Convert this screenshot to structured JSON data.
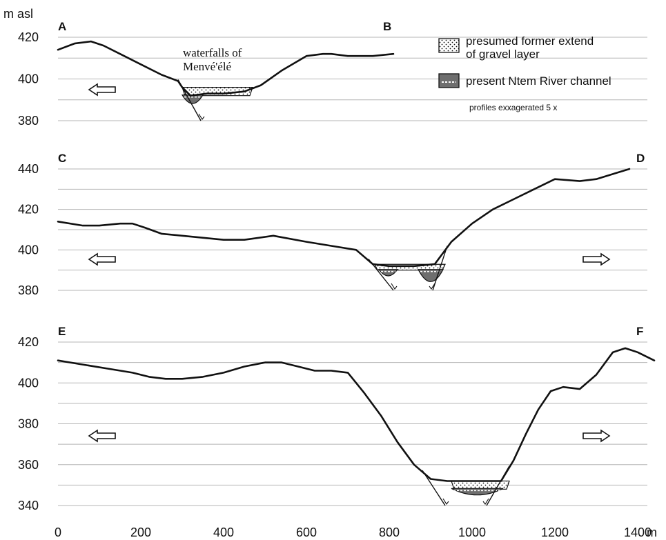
{
  "chart_data": [
    {
      "type": "line",
      "title": "",
      "ylabel": "m asl",
      "xlabel": "",
      "ylim": [
        380,
        420
      ],
      "yticks": [
        "380",
        "400",
        "420"
      ],
      "corner_left": "A",
      "corner_right": "B",
      "annotation_lines": [
        "waterfalls of",
        "Menvé'élé"
      ],
      "arrows": [
        "left"
      ],
      "profile": {
        "x": [
          0,
          40,
          80,
          110,
          150,
          200,
          250,
          290,
          300,
          320,
          360,
          400,
          450,
          490,
          540,
          600,
          640,
          660,
          700,
          760,
          810
        ],
        "y": [
          414,
          417,
          418,
          416,
          412,
          407,
          402,
          399,
          396,
          392,
          393,
          393,
          394,
          397,
          404,
          411,
          412,
          412,
          411,
          411,
          412
        ]
      },
      "gravel": [
        {
          "x_start": 300,
          "x_end": 470,
          "bottom": 392
        }
      ],
      "channel": [
        {
          "x_start": 300,
          "x_end": 350,
          "bottom": 388
        }
      ],
      "faults": [
        [
          290,
          345
        ]
      ]
    },
    {
      "type": "line",
      "title": "",
      "ylim": [
        380,
        440
      ],
      "yticks": [
        "380",
        "400",
        "420",
        "440"
      ],
      "corner_left": "C",
      "corner_right": "D",
      "arrows": [
        "left",
        "right"
      ],
      "profile": {
        "x": [
          0,
          60,
          100,
          150,
          180,
          210,
          250,
          300,
          400,
          450,
          520,
          600,
          660,
          720,
          760,
          800,
          860,
          910,
          950,
          1000,
          1050,
          1100,
          1150,
          1200,
          1260,
          1300,
          1380
        ],
        "y": [
          414,
          412,
          412,
          413,
          413,
          411,
          408,
          407,
          405,
          405,
          407,
          404,
          402,
          400,
          393,
          392,
          392,
          393,
          404,
          413,
          420,
          425,
          430,
          435,
          434,
          435,
          440
        ]
      },
      "gravel": [
        {
          "x_start": 765,
          "x_end": 935,
          "bottom": 390
        }
      ],
      "channel": [
        {
          "x_start": 775,
          "x_end": 820,
          "bottom": 387
        },
        {
          "x_start": 870,
          "x_end": 930,
          "bottom": 384
        }
      ],
      "faults": [
        [
          750,
          810
        ],
        [
          940,
          905
        ]
      ]
    },
    {
      "type": "line",
      "title": "",
      "xlabel": "m",
      "ylim": [
        340,
        420
      ],
      "yticks": [
        "340",
        "360",
        "380",
        "400",
        "420"
      ],
      "xlim": [
        0,
        1400
      ],
      "xticks": [
        "0",
        "200",
        "400",
        "600",
        "800",
        "1000",
        "1200",
        "1400"
      ],
      "corner_left": "E",
      "corner_right": "F",
      "arrows": [
        "left",
        "right"
      ],
      "profile": {
        "x": [
          0,
          60,
          120,
          180,
          220,
          260,
          300,
          350,
          400,
          450,
          500,
          540,
          580,
          620,
          660,
          700,
          740,
          780,
          820,
          860,
          900,
          940,
          980,
          1010,
          1040,
          1070,
          1100,
          1130,
          1160,
          1190,
          1220,
          1260,
          1300,
          1340,
          1370,
          1400,
          1440
        ],
        "y": [
          411,
          409,
          407,
          405,
          403,
          402,
          402,
          403,
          405,
          408,
          410,
          410,
          408,
          406,
          406,
          405,
          395,
          384,
          371,
          360,
          353,
          352,
          352,
          352,
          352,
          352,
          362,
          375,
          387,
          396,
          398,
          397,
          404,
          415,
          417,
          415,
          411
        ]
      },
      "gravel": [
        {
          "x_start": 950,
          "x_end": 1090,
          "bottom": 348
        }
      ],
      "channel": [
        {
          "x_start": 950,
          "x_end": 1075,
          "bottom": 345
        }
      ],
      "faults": [
        [
          880,
          935
        ],
        [
          1090,
          1035
        ]
      ]
    }
  ],
  "legend": {
    "gravel_label_lines": [
      "presumed former extend",
      "of gravel layer"
    ],
    "channel_label": "present Ntem River channel",
    "note": "profiles exxagerated 5 x"
  },
  "colors": {
    "line": "#111111",
    "grid": "#b5b5b5",
    "channel_fill": "#6e6e6e"
  }
}
